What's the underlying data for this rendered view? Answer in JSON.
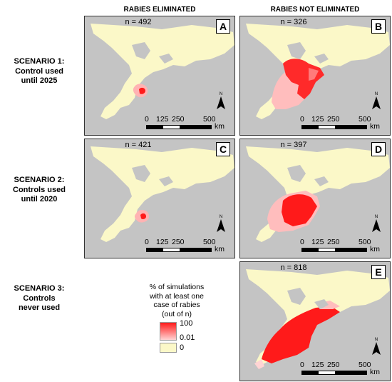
{
  "columns": {
    "eliminated": "RABIES ELIMINATED",
    "not_eliminated": "RABIES NOT ELIMINATED"
  },
  "scenarios": [
    {
      "line1": "SCENARIO 1:",
      "line2": "Control used",
      "line3": "until 2025"
    },
    {
      "line1": "SCENARIO 2:",
      "line2": "Controls used",
      "line3": "until 2020"
    },
    {
      "line1": "SCENARIO 3:",
      "line2": "Controls",
      "line3": "never used"
    }
  ],
  "panels": {
    "A": {
      "letter": "A",
      "n_text": "n = 492"
    },
    "B": {
      "letter": "B",
      "n_text": "n = 326"
    },
    "C": {
      "letter": "C",
      "n_text": "n = 421"
    },
    "D": {
      "letter": "D",
      "n_text": "n = 397"
    },
    "E": {
      "letter": "E",
      "n_text": "n = 818"
    }
  },
  "scale": {
    "t0": "0",
    "t1": "125",
    "t2": "250",
    "t3": "500",
    "unit": "km"
  },
  "north_label": "N",
  "legend": {
    "title_line1": "% of simulations",
    "title_line2": "with at least one",
    "title_line3": "case of rabies",
    "title_line4": "(out of n)",
    "high": "100",
    "mid": "0.01",
    "zero": "0"
  },
  "colors": {
    "land": "#fbf8c8",
    "water": "#c4c4c4",
    "risk_high": "#ff1a1a",
    "risk_low": "#ffd4d4"
  }
}
